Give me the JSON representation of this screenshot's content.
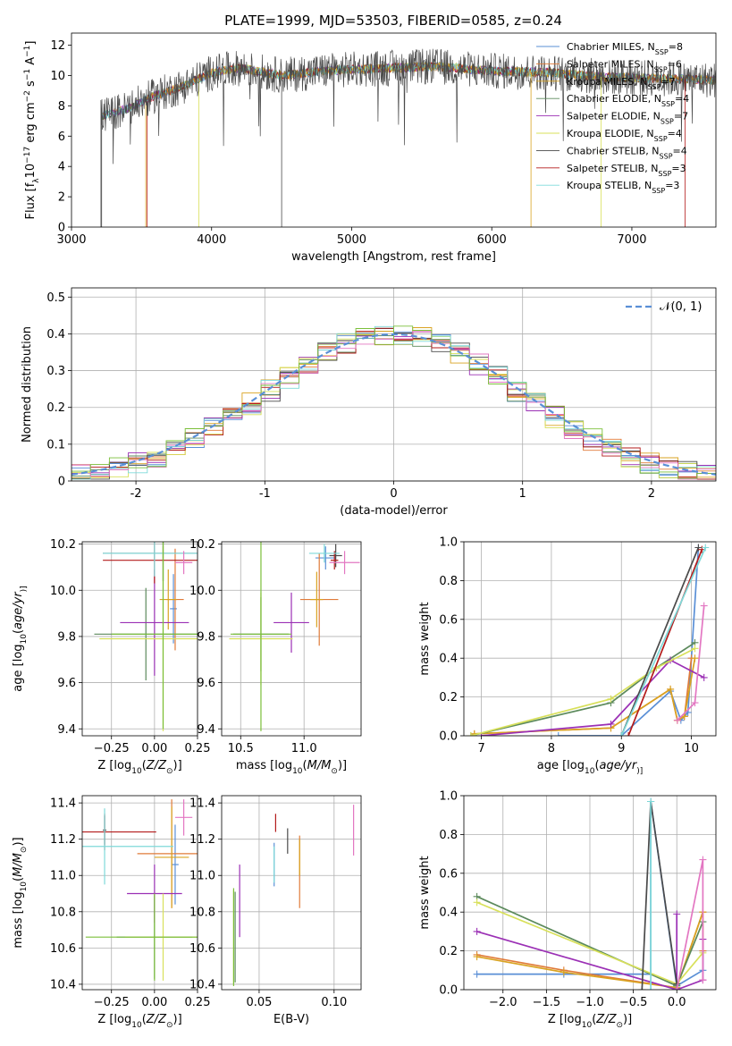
{
  "title": "PLATE=1999, MJD=53503, FIBERID=0585, z=0.24",
  "colors": [
    "#5a8fd6",
    "#e07b39",
    "#d9a321",
    "#5c8a5c",
    "#9b30b5",
    "#d8e05a",
    "#4a4a4a",
    "#b31b1b",
    "#7ed9d9"
  ],
  "colors_extra": {
    "pink": "#e377c2",
    "green": "#7bbf3a"
  },
  "legend": [
    {
      "pre": "Chabrier MILES, N",
      "sub": "SSP",
      "post": "=8"
    },
    {
      "pre": "Salpeter MILES, N",
      "sub": "SSP",
      "post": "=6"
    },
    {
      "pre": "Kroupa MILES, N",
      "sub": "SSP",
      "post": "=7"
    },
    {
      "pre": "Chabrier ELODIE, N",
      "sub": "SSP",
      "post": "=4"
    },
    {
      "pre": "Salpeter ELODIE, N",
      "sub": "SSP",
      "post": "=7"
    },
    {
      "pre": "Kroupa ELODIE, N",
      "sub": "SSP",
      "post": "=4"
    },
    {
      "pre": "Chabrier STELIB, N",
      "sub": "SSP",
      "post": "=4"
    },
    {
      "pre": "Salpeter STELIB, N",
      "sub": "SSP",
      "post": "=3"
    },
    {
      "pre": "Kroupa STELIB, N",
      "sub": "SSP",
      "post": "=3"
    }
  ],
  "hist_legend": "𝒩(0, 1)",
  "chart_data": [
    {
      "id": "spectrum",
      "type": "line",
      "xlabel": "wavelength [Angstrom, rest frame]",
      "ylabel_parts": [
        "Flux [f",
        "λ",
        "10",
        "−17",
        " erg cm",
        "−2",
        " s",
        "−1",
        " A",
        "−1",
        "]"
      ],
      "xlim": [
        3000,
        7600
      ],
      "ylim": [
        0,
        12.8
      ],
      "xticks": [
        3000,
        4000,
        5000,
        6000,
        7000
      ],
      "yticks": [
        0,
        2,
        4,
        6,
        8,
        10,
        12
      ],
      "continuum": [
        [
          3200,
          7.3
        ],
        [
          3400,
          7.8
        ],
        [
          3600,
          8.7
        ],
        [
          3800,
          9.3
        ],
        [
          4000,
          10.2
        ],
        [
          4200,
          10.5
        ],
        [
          4500,
          10.0
        ],
        [
          4800,
          10.3
        ],
        [
          5000,
          10.4
        ],
        [
          5300,
          10.5
        ],
        [
          5600,
          10.6
        ],
        [
          6000,
          10.3
        ],
        [
          6400,
          10.2
        ],
        [
          6800,
          9.9
        ],
        [
          7200,
          9.8
        ],
        [
          7600,
          9.7
        ]
      ],
      "model_starts": [
        {
          "series": 6,
          "x": 3210
        },
        {
          "series": 2,
          "x": 3530
        },
        {
          "series": 7,
          "x": 3540
        },
        {
          "series": 5,
          "x": 3910
        }
      ]
    },
    {
      "id": "residual_hist",
      "type": "histogram",
      "xlabel": "(data-model)/error",
      "ylabel": "Normed distribution",
      "xlim": [
        -2.5,
        2.5
      ],
      "ylim": [
        0,
        0.525
      ],
      "xticks": [
        -2,
        -1,
        0,
        1,
        2
      ],
      "yticks": [
        0.0,
        0.1,
        0.2,
        0.3,
        0.4,
        0.5
      ],
      "reference": {
        "type": "normal",
        "mean": 0,
        "sigma": 1
      }
    },
    {
      "id": "age_vs_Z",
      "type": "errorbar",
      "xlabel_parts": [
        "Z [log",
        "10",
        "(",
        "Z/Z",
        "⊙",
        ")]"
      ],
      "ylabel_parts": [
        "age  [log",
        "10",
        "(",
        "age/yr",
        ")]"
      ],
      "xlim": [
        -0.42,
        0.25
      ],
      "ylim": [
        9.37,
        10.21
      ],
      "xticks": [
        -0.25,
        0.0,
        0.25
      ],
      "xtick_labels": [
        "−0.25",
        "0.00",
        "0.25"
      ],
      "yticks": [
        9.4,
        9.6,
        9.8,
        10.0,
        10.2
      ],
      "ytick_labels": [
        "9.4",
        "9.6",
        "9.8",
        "10.0",
        "10.2"
      ],
      "points": [
        {
          "c": 0,
          "x": 0.11,
          "xe": 0.02,
          "y": 9.92,
          "ye": 0.15
        },
        {
          "c": 1,
          "x": 0.12,
          "xe": 0.05,
          "y": 9.96,
          "ye": 0.22
        },
        {
          "c": 2,
          "x": 0.08,
          "xe": 0.05,
          "y": 9.96,
          "ye": 0.13
        },
        {
          "c": 3,
          "x": -0.05,
          "xe": 0.3,
          "y": 9.81,
          "ye": 0.2
        },
        {
          "c": 4,
          "x": 0.0,
          "xe": 0.2,
          "y": 9.86,
          "ye": 0.23
        },
        {
          "c": 5,
          "x": 0.05,
          "xe": 0.37,
          "y": 9.79,
          "ye": 0.4
        },
        {
          "c": 6,
          "x": 0.05,
          "xe": 0.35,
          "y": 10.16,
          "ye": 0.12
        },
        {
          "c": 7,
          "x": 0.0,
          "xe": 0.3,
          "y": 10.13,
          "ye": 0.1
        },
        {
          "c": 8,
          "x": 0.0,
          "xe": 0.3,
          "y": 10.16,
          "ye": 0.1
        },
        {
          "c": 9,
          "x": 0.17,
          "xe": 0.05,
          "y": 10.12,
          "ye": 0.05
        },
        {
          "c": 10,
          "x": 0.05,
          "xe": 0.3,
          "y": 9.81,
          "ye": 0.41
        }
      ]
    },
    {
      "id": "age_vs_mass",
      "type": "errorbar",
      "xlabel_parts": [
        "mass [log",
        "10",
        "(",
        "M/M",
        "⊙",
        ")]"
      ],
      "xlim": [
        10.35,
        11.45
      ],
      "ylim": [
        9.37,
        10.21
      ],
      "xticks": [
        10.5,
        11.0
      ],
      "xtick_labels": [
        "10.5",
        "11.0"
      ],
      "yticks": [
        9.4,
        9.6,
        9.8,
        10.0,
        10.2
      ],
      "ytick_labels": [
        "9.4",
        "9.6",
        "9.8",
        "10.0",
        "10.2"
      ],
      "points": [
        {
          "c": 0,
          "x": 11.17,
          "xe": 0.08,
          "y": 10.14,
          "ye": 0.05
        },
        {
          "c": 1,
          "x": 11.12,
          "xe": 0.15,
          "y": 9.96,
          "ye": 0.2
        },
        {
          "c": 2,
          "x": 11.1,
          "xe": 0.05,
          "y": 9.96,
          "ye": 0.12
        },
        {
          "c": 3,
          "x": 10.66,
          "xe": 0.22,
          "y": 9.81,
          "ye": 0.16
        },
        {
          "c": 4,
          "x": 10.9,
          "xe": 0.14,
          "y": 9.86,
          "ye": 0.13
        },
        {
          "c": 5,
          "x": 10.66,
          "xe": 0.25,
          "y": 9.79,
          "ye": 0.2
        },
        {
          "c": 6,
          "x": 11.25,
          "xe": 0.05,
          "y": 10.15,
          "ye": 0.05
        },
        {
          "c": 7,
          "x": 11.24,
          "xe": 0.03,
          "y": 10.13,
          "ye": 0.04
        },
        {
          "c": 8,
          "x": 11.16,
          "xe": 0.12,
          "y": 10.16,
          "ye": 0.04
        },
        {
          "c": 9,
          "x": 11.32,
          "xe": 0.12,
          "y": 10.12,
          "ye": 0.05
        },
        {
          "c": 10,
          "x": 10.66,
          "xe": 0.24,
          "y": 9.81,
          "ye": 0.42
        }
      ]
    },
    {
      "id": "weight_vs_age",
      "type": "line",
      "xlabel_parts": [
        "age  [log",
        "10",
        "(",
        "age/yr",
        ")]"
      ],
      "ylabel": "mass weight",
      "xlim": [
        6.75,
        10.35
      ],
      "ylim": [
        0,
        1.0
      ],
      "xticks": [
        7,
        8,
        9,
        10
      ],
      "xtick_labels": [
        "7",
        "8",
        "9",
        "10"
      ],
      "yticks": [
        0,
        0.2,
        0.4,
        0.6,
        0.8,
        1.0
      ],
      "ytick_labels": [
        "0.0",
        "0.2",
        "0.4",
        "0.6",
        "0.8",
        "1.0"
      ],
      "series": [
        {
          "c": 0,
          "x": [
            8.1,
            9.0,
            9.7,
            9.85,
            9.95,
            10.1
          ],
          "y": [
            0.0,
            0.0,
            0.23,
            0.08,
            0.12,
            0.97
          ]
        },
        {
          "c": 1,
          "x": [
            6.9,
            8.85,
            9.7,
            9.8,
            9.9,
            10.0
          ],
          "y": [
            0.01,
            0.04,
            0.24,
            0.08,
            0.1,
            0.4
          ]
        },
        {
          "c": 2,
          "x": [
            6.9,
            8.85,
            9.7,
            9.8,
            9.9,
            10.05
          ],
          "y": [
            0.01,
            0.04,
            0.24,
            0.08,
            0.1,
            0.4
          ]
        },
        {
          "c": 3,
          "x": [
            6.85,
            8.85,
            9.5,
            10.05
          ],
          "y": [
            0.0,
            0.17,
            0.35,
            0.48
          ]
        },
        {
          "c": 4,
          "x": [
            7.0,
            8.85,
            9.7,
            10.18
          ],
          "y": [
            0.0,
            0.06,
            0.39,
            0.3
          ]
        },
        {
          "c": 5,
          "x": [
            6.85,
            8.85,
            9.5,
            10.05
          ],
          "y": [
            0.0,
            0.19,
            0.35,
            0.45
          ]
        },
        {
          "c": 6,
          "x": [
            9.0,
            10.1
          ],
          "y": [
            0.0,
            0.97
          ]
        },
        {
          "c": 7,
          "x": [
            9.1,
            10.15
          ],
          "y": [
            0.0,
            0.96
          ]
        },
        {
          "c": 8,
          "x": [
            9.0,
            10.2
          ],
          "y": [
            0.0,
            0.97
          ]
        },
        {
          "c": 9,
          "x": [
            9.8,
            10.05,
            10.18
          ],
          "y": [
            0.08,
            0.17,
            0.67
          ]
        }
      ]
    },
    {
      "id": "mass_vs_Z",
      "type": "errorbar",
      "xlabel_parts": [
        "Z [log",
        "10",
        "(",
        "Z/Z",
        "⊙",
        ")]"
      ],
      "ylabel_parts": [
        "mass [log",
        "10",
        "(",
        "M/M",
        "⊙",
        ")]"
      ],
      "xlim": [
        -0.42,
        0.25
      ],
      "ylim": [
        10.37,
        11.44
      ],
      "xticks": [
        -0.25,
        0.0,
        0.25
      ],
      "xtick_labels": [
        "−0.25",
        "0.00",
        "0.25"
      ],
      "yticks": [
        10.4,
        10.6,
        10.8,
        11.0,
        11.2,
        11.4
      ],
      "ytick_labels": [
        "10.4",
        "10.6",
        "10.8",
        "11.0",
        "11.2",
        "11.4"
      ],
      "points": [
        {
          "c": 0,
          "x": 0.12,
          "xe": 0.02,
          "y": 11.06,
          "ye": 0.22
        },
        {
          "c": 1,
          "x": 0.1,
          "xe": 0.2,
          "y": 11.12,
          "ye": 0.3
        },
        {
          "c": 2,
          "x": 0.1,
          "xe": 0.1,
          "y": 11.1,
          "ye": 0.28
        },
        {
          "c": 3,
          "x": 0.0,
          "xe": 0.22,
          "y": 10.66,
          "ye": 0.23
        },
        {
          "c": 4,
          "x": 0.0,
          "xe": 0.16,
          "y": 10.9,
          "ye": 0.16
        },
        {
          "c": 5,
          "x": 0.05,
          "xe": 0.22,
          "y": 10.66,
          "ye": 0.24
        },
        {
          "c": 6,
          "x": -0.29,
          "xe": 0.01,
          "y": 11.25,
          "ye": 0.08
        },
        {
          "c": 7,
          "x": -0.29,
          "xe": 0.3,
          "y": 11.24,
          "ye": 0.1
        },
        {
          "c": 8,
          "x": -0.29,
          "xe": 0.4,
          "y": 11.16,
          "ye": 0.21
        },
        {
          "c": 9,
          "x": 0.17,
          "xe": 0.05,
          "y": 11.32,
          "ye": 0.1
        },
        {
          "c": 10,
          "x": 0.0,
          "xe": 0.4,
          "y": 10.66,
          "ye": 0.24
        }
      ]
    },
    {
      "id": "mass_vs_ebv",
      "type": "errorbar",
      "xlabel": "E(B-V)",
      "xlim": [
        0.025,
        0.118
      ],
      "ylim": [
        10.37,
        11.44
      ],
      "xticks": [
        0.05,
        0.1
      ],
      "xtick_labels": [
        "0.05",
        "0.10"
      ],
      "yticks": [
        10.4,
        10.6,
        10.8,
        11.0,
        11.2,
        11.4
      ],
      "ytick_labels": [
        "10.4",
        "10.6",
        "10.8",
        "11.0",
        "11.2",
        "11.4"
      ],
      "points": [
        {
          "c": 0,
          "x": 0.06,
          "xe": 0,
          "y": 11.06,
          "ye": 0.12
        },
        {
          "c": 1,
          "x": 0.077,
          "xe": 0,
          "y": 11.02,
          "ye": 0.2
        },
        {
          "c": 2,
          "x": 0.077,
          "xe": 0,
          "y": 11.1,
          "ye": 0.1
        },
        {
          "c": 3,
          "x": 0.034,
          "xe": 0,
          "y": 10.66,
          "ye": 0.25
        },
        {
          "c": 4,
          "x": 0.037,
          "xe": 0,
          "y": 10.86,
          "ye": 0.2
        },
        {
          "c": 5,
          "x": 0.033,
          "xe": 0,
          "y": 10.66,
          "ye": 0.26
        },
        {
          "c": 6,
          "x": 0.069,
          "xe": 0,
          "y": 11.19,
          "ye": 0.07
        },
        {
          "c": 7,
          "x": 0.061,
          "xe": 0,
          "y": 11.29,
          "ye": 0.05
        },
        {
          "c": 8,
          "x": 0.06,
          "xe": 0,
          "y": 11.06,
          "ye": 0.1
        },
        {
          "c": 9,
          "x": 0.113,
          "xe": 0,
          "y": 11.25,
          "ye": 0.14
        },
        {
          "c": 10,
          "x": 0.033,
          "xe": 0,
          "y": 10.66,
          "ye": 0.27
        }
      ]
    },
    {
      "id": "weight_vs_Z",
      "type": "line",
      "xlabel_parts": [
        "Z [log",
        "10",
        "(",
        "Z/Z",
        "⊙",
        ")]"
      ],
      "ylabel": "mass weight",
      "xlim": [
        -2.45,
        0.45
      ],
      "ylim": [
        0,
        1.0
      ],
      "xticks": [
        -2.0,
        -1.5,
        -1.0,
        -0.5,
        0.0
      ],
      "xtick_labels": [
        "−2.0",
        "−1.5",
        "−1.0",
        "−0.5",
        "0.0"
      ],
      "yticks": [
        0,
        0.2,
        0.4,
        0.6,
        0.8,
        1.0
      ],
      "ytick_labels": [
        "0.0",
        "0.2",
        "0.4",
        "0.6",
        "0.8",
        "1.0"
      ],
      "series": [
        {
          "c": 0,
          "x": [
            -2.3,
            -1.3,
            -0.3,
            -0.3,
            0.0,
            0.3,
            0.3
          ],
          "y": [
            0.08,
            0.08,
            0.08,
            0.97,
            0.02,
            0.1,
            0.2
          ]
        },
        {
          "c": 1,
          "x": [
            -2.3,
            -1.3,
            0.0,
            0.3,
            0.3
          ],
          "y": [
            0.18,
            0.1,
            0.01,
            0.4,
            0.2
          ]
        },
        {
          "c": 2,
          "x": [
            -2.3,
            -1.3,
            0.0,
            0.3
          ],
          "y": [
            0.17,
            0.09,
            0.01,
            0.4
          ]
        },
        {
          "c": 3,
          "x": [
            -2.3,
            0.0,
            0.3
          ],
          "y": [
            0.48,
            0.02,
            0.35
          ]
        },
        {
          "c": 4,
          "x": [
            -2.3,
            0.0,
            0.0,
            0.0,
            0.3,
            0.3
          ],
          "y": [
            0.3,
            0.0,
            0.39,
            0.0,
            0.05,
            0.26
          ]
        },
        {
          "c": 5,
          "x": [
            -2.3,
            0.0,
            0.3
          ],
          "y": [
            0.45,
            0.03,
            0.19
          ]
        },
        {
          "c": 6,
          "x": [
            -0.4,
            -0.3,
            0.0
          ],
          "y": [
            0.0,
            0.97,
            0.03
          ]
        },
        {
          "c": 8,
          "x": [
            -0.3,
            -0.3
          ],
          "y": [
            0.0,
            0.97
          ]
        },
        {
          "c": 9,
          "x": [
            0.0,
            0.3,
            0.3
          ],
          "y": [
            0.0,
            0.67,
            0.05
          ]
        }
      ]
    }
  ]
}
